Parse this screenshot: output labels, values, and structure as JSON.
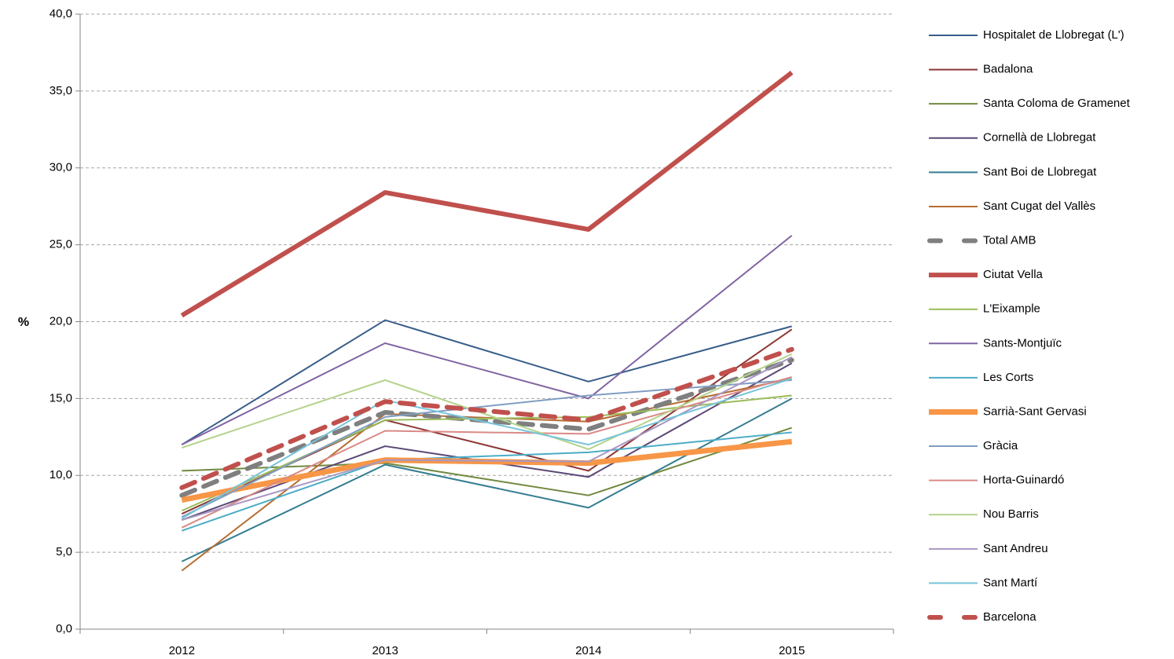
{
  "chart_data": {
    "type": "line",
    "y_label": "%",
    "categories": [
      "2012",
      "2013",
      "2014",
      "2015"
    ],
    "ylim": [
      0,
      40
    ],
    "yticks": [
      {
        "value": 0,
        "label": "0,0"
      },
      {
        "value": 5,
        "label": "5,0"
      },
      {
        "value": 10,
        "label": "10,0"
      },
      {
        "value": 15,
        "label": "15,0"
      },
      {
        "value": 20,
        "label": "20,0"
      },
      {
        "value": 25,
        "label": "25,0"
      },
      {
        "value": 30,
        "label": "30,0"
      },
      {
        "value": 35,
        "label": "35,0"
      },
      {
        "value": 40,
        "label": "40,0"
      }
    ],
    "grid": true,
    "legend": "right",
    "series": [
      {
        "name": "Hospitalet de Llobregat (L')",
        "color": "#385d8a",
        "linewidth": 2,
        "dashed": false,
        "values": [
          12.0,
          20.1,
          16.1,
          19.7
        ]
      },
      {
        "name": "Badalona",
        "color": "#8c3836",
        "linewidth": 2,
        "dashed": false,
        "values": [
          7.5,
          13.6,
          10.3,
          19.5
        ]
      },
      {
        "name": "Santa Coloma de Gramenet",
        "color": "#71893f",
        "linewidth": 2,
        "dashed": false,
        "values": [
          10.3,
          10.8,
          8.7,
          13.1
        ]
      },
      {
        "name": "Cornellà de Llobregat",
        "color": "#5c4776",
        "linewidth": 2,
        "dashed": false,
        "values": [
          7.1,
          11.9,
          9.9,
          17.3
        ]
      },
      {
        "name": "Sant Boi de Llobregat",
        "color": "#357d91",
        "linewidth": 2,
        "dashed": false,
        "values": [
          4.4,
          10.7,
          7.9,
          15.0
        ]
      },
      {
        "name": "Sant Cugat del Vallès",
        "color": "#b66d31",
        "linewidth": 2,
        "dashed": false,
        "values": [
          3.8,
          14.0,
          13.5,
          16.3
        ]
      },
      {
        "name": "Total AMB",
        "color": "#7f7f7f",
        "linewidth": 6,
        "dashed": true,
        "values": [
          8.7,
          14.1,
          13.0,
          17.5
        ]
      },
      {
        "name": "Ciutat Vella",
        "color": "#c0504d",
        "linewidth": 6,
        "dashed": false,
        "values": [
          20.4,
          28.4,
          26.0,
          36.2
        ]
      },
      {
        "name": "L'Eixample",
        "color": "#9bbb59",
        "linewidth": 2,
        "dashed": false,
        "values": [
          7.7,
          13.6,
          13.8,
          15.2
        ]
      },
      {
        "name": "Sants-Montjuïc",
        "color": "#8064a2",
        "linewidth": 2,
        "dashed": false,
        "values": [
          12.0,
          18.6,
          15.0,
          25.6
        ]
      },
      {
        "name": "Les Corts",
        "color": "#4bacc6",
        "linewidth": 2,
        "dashed": false,
        "values": [
          6.4,
          11.0,
          11.5,
          12.8
        ]
      },
      {
        "name": "Sarrià-Sant Gervasi",
        "color": "#f79646",
        "linewidth": 7,
        "dashed": false,
        "values": [
          8.4,
          11.0,
          10.8,
          12.2
        ]
      },
      {
        "name": "Gràcia",
        "color": "#809ec2",
        "linewidth": 2,
        "dashed": false,
        "values": [
          7.3,
          13.8,
          15.2,
          16.2
        ]
      },
      {
        "name": "Horta-Guinardó",
        "color": "#da8a87",
        "linewidth": 2,
        "dashed": false,
        "values": [
          6.6,
          12.9,
          12.7,
          16.4
        ]
      },
      {
        "name": "Nou Barris",
        "color": "#b3d38a",
        "linewidth": 2,
        "dashed": false,
        "values": [
          11.8,
          16.2,
          11.7,
          17.9
        ]
      },
      {
        "name": "Sant Andreu",
        "color": "#a897c4",
        "linewidth": 2,
        "dashed": false,
        "values": [
          7.1,
          11.0,
          10.9,
          17.7
        ]
      },
      {
        "name": "Sant Martí",
        "color": "#77c4da",
        "linewidth": 2,
        "dashed": false,
        "values": [
          7.2,
          14.9,
          12.0,
          16.3
        ]
      },
      {
        "name": "Barcelona",
        "color": "#c0504d",
        "linewidth": 6,
        "dashed": true,
        "values": [
          9.2,
          14.8,
          13.6,
          18.2
        ]
      }
    ]
  }
}
